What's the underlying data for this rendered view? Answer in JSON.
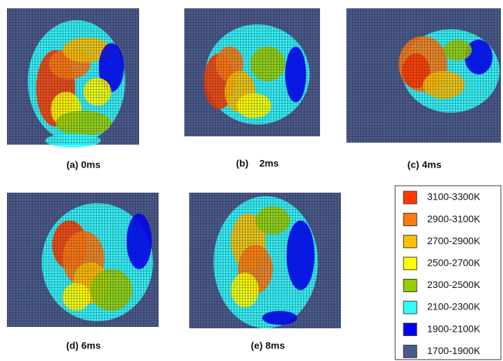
{
  "panels": [
    {
      "label": "(a) 0ms"
    },
    {
      "label": "(b)    2ms"
    },
    {
      "label": "(c) 4ms"
    },
    {
      "label": "(d) 6ms"
    },
    {
      "label": "(e) 8ms"
    }
  ],
  "legend": {
    "items": [
      {
        "label": "3100-3300K",
        "color": "#ff3a00"
      },
      {
        "label": "2900-3100K",
        "color": "#ff7a10"
      },
      {
        "label": "2700-2900K",
        "color": "#ffc000"
      },
      {
        "label": "2500-2700K",
        "color": "#ffff00"
      },
      {
        "label": "2300-2500K",
        "color": "#99cc00"
      },
      {
        "label": "2100-2300K",
        "color": "#33ffff"
      },
      {
        "label": "1900-2100K",
        "color": "#0000ff"
      },
      {
        "label": "1700-1900K",
        "color": "#4a5a8a"
      }
    ]
  }
}
